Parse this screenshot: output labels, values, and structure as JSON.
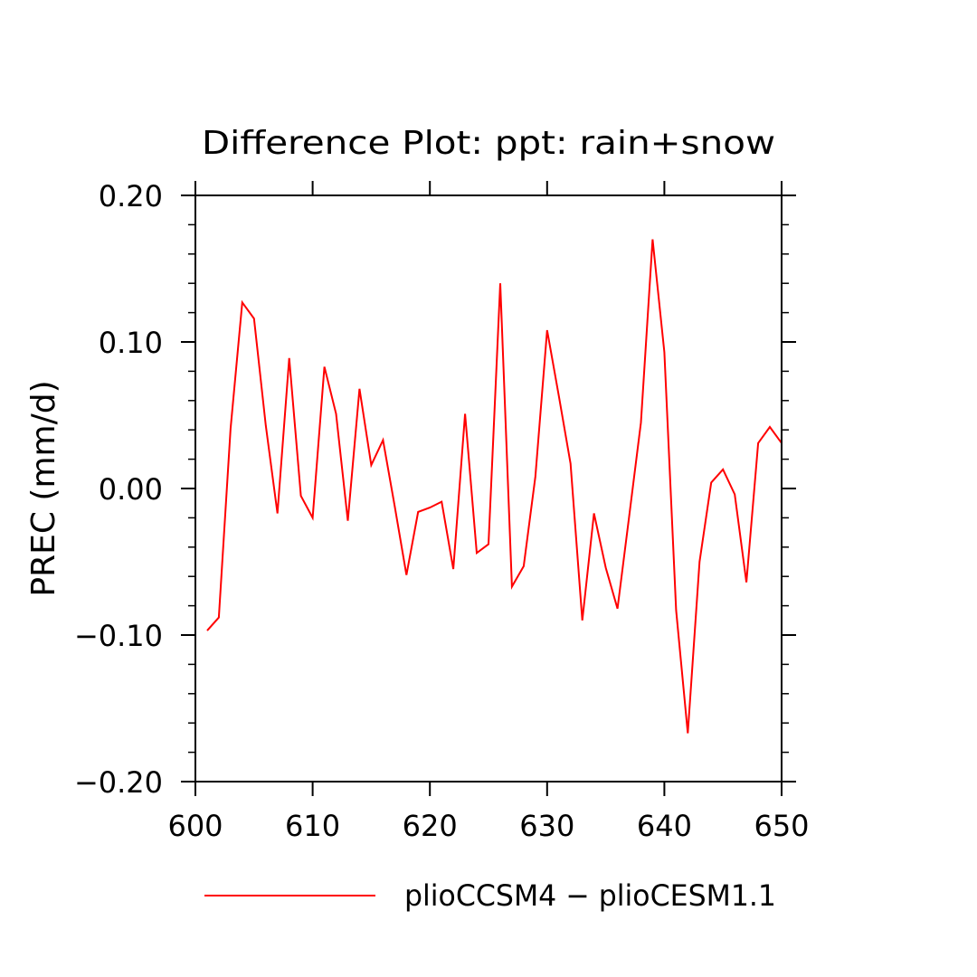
{
  "chart_data": {
    "type": "line",
    "title": "Difference Plot: ppt: rain+snow",
    "xlabel": "",
    "ylabel": "PREC  (mm/d)",
    "xlim": [
      600,
      650
    ],
    "ylim": [
      -0.2,
      0.2
    ],
    "x_ticks": [
      600,
      610,
      620,
      630,
      640,
      650
    ],
    "x_tick_labels": [
      "600",
      "610",
      "620",
      "630",
      "640",
      "650"
    ],
    "y_ticks": [
      -0.2,
      -0.1,
      0.0,
      0.1,
      0.2
    ],
    "y_tick_labels": [
      "−0.20",
      "−0.10",
      "0.00",
      "0.10",
      "0.20"
    ],
    "grid": false,
    "legend_position": "bottom",
    "series": [
      {
        "name": "plioCCSM4 − plioCESM1.1",
        "color": "#ff0000",
        "x": [
          601,
          602,
          603,
          604,
          605,
          606,
          607,
          608,
          609,
          610,
          611,
          612,
          613,
          614,
          615,
          616,
          617,
          618,
          619,
          620,
          621,
          622,
          623,
          624,
          625,
          626,
          627,
          628,
          629,
          630,
          631,
          632,
          633,
          634,
          635,
          636,
          637,
          638,
          639,
          640,
          641,
          642,
          643,
          644,
          645,
          646,
          647,
          648,
          649,
          650
        ],
        "values": [
          -0.097,
          -0.088,
          0.041,
          0.127,
          0.116,
          0.043,
          -0.017,
          0.089,
          -0.005,
          -0.02,
          0.083,
          0.051,
          -0.022,
          0.068,
          0.016,
          0.033,
          -0.012,
          -0.059,
          -0.016,
          -0.013,
          -0.009,
          -0.055,
          0.051,
          -0.044,
          -0.038,
          0.14,
          -0.067,
          -0.053,
          0.008,
          0.108,
          0.063,
          0.017,
          -0.09,
          -0.017,
          -0.054,
          -0.082,
          -0.019,
          0.045,
          0.17,
          0.093,
          -0.083,
          -0.167,
          -0.05,
          0.004,
          0.013,
          -0.004,
          -0.064,
          0.031,
          0.042,
          0.031
        ]
      }
    ]
  }
}
